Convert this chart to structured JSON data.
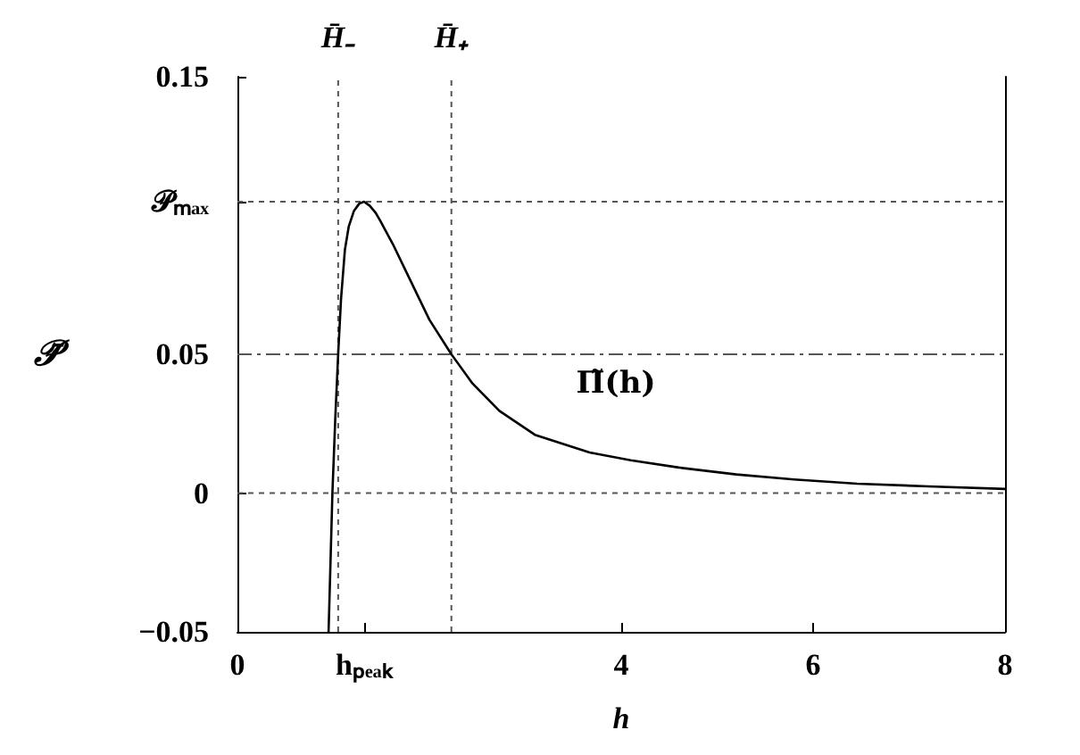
{
  "chart_data": {
    "type": "line",
    "xlabel": "h",
    "ylabel": "𝒫̄",
    "x": [
      0.95,
      0.97,
      0.99,
      1.02,
      1.05,
      1.08,
      1.12,
      1.16,
      1.215,
      1.27,
      1.32,
      1.38,
      1.44,
      1.49,
      1.62,
      1.8,
      2.0,
      2.23,
      2.45,
      2.73,
      3.1,
      3.67,
      4.1,
      4.6,
      5.2,
      5.8,
      6.46,
      7.2,
      8
    ],
    "series": [
      {
        "color": "#000000",
        "values": [
          -0.05,
          -0.025,
          0,
          0.027,
          0.05,
          0.07,
          0.0876,
          0.096,
          0.1017,
          0.1043,
          0.105,
          0.1035,
          0.101,
          0.098,
          0.0897,
          0.0768,
          0.0625,
          0.05,
          0.0395,
          0.0296,
          0.021,
          0.0146,
          0.0118,
          0.0092,
          0.0067,
          0.0049,
          0.0034,
          0.0024,
          0.0015
        ]
      }
    ],
    "xlim": [
      0,
      8
    ],
    "xticks": [
      0,
      {
        "value": 1.32,
        "label": "hₚₑₐₖ"
      },
      4,
      6,
      8
    ],
    "ylim": [
      -0.05,
      0.15
    ],
    "yticks": [
      -0.05,
      0,
      0.05,
      {
        "value": 0.105,
        "label": "𝒫ₘₐₓ"
      },
      0.15
    ],
    "ref_lines": [
      {
        "axis": "y",
        "value": 0,
        "line_style": "dotted",
        "color": "#555555"
      },
      {
        "axis": "y",
        "value": 0.105,
        "line_style": "dotted",
        "color": "#555555"
      },
      {
        "axis": "y",
        "value": 0.05,
        "line_style": "dashed",
        "color": "#555555"
      },
      {
        "axis": "x",
        "value": 1.05,
        "line_style": "dotted",
        "color": "#555555",
        "label": "H̄₋"
      },
      {
        "axis": "x",
        "value": 2.23,
        "line_style": "dotted",
        "color": "#555555",
        "label": "H̄₊"
      }
    ],
    "annotations": [
      "Π̃(h)"
    ],
    "grid": false,
    "line_style": "solid"
  }
}
